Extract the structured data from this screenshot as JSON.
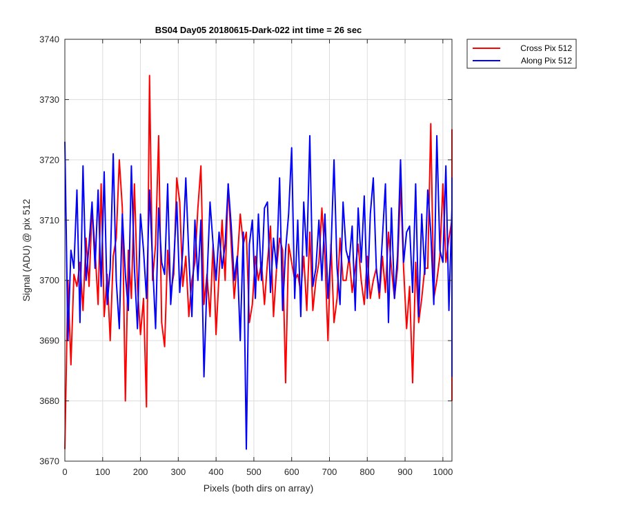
{
  "chart_data": {
    "type": "line",
    "title": "BS04 Day05 20180615-Dark-022 int time = 26 sec",
    "xlabel": "Pixels (both dirs on array)",
    "ylabel": "Signal (ADU) @ pix 512",
    "xlim": [
      0,
      1024
    ],
    "ylim": [
      3670,
      3740
    ],
    "xticks": [
      0,
      100,
      200,
      300,
      400,
      500,
      600,
      700,
      800,
      900,
      1000
    ],
    "yticks": [
      3670,
      3680,
      3690,
      3700,
      3710,
      3720,
      3730,
      3740
    ],
    "grid": true,
    "legend_position": "outside top-right",
    "series": [
      {
        "name": "Cross Pix 512",
        "color": "#ff0000",
        "sample_step": 8,
        "x_start": 0,
        "values": [
          3672,
          3700,
          3686,
          3701,
          3699,
          3703,
          3695,
          3707,
          3699,
          3712,
          3705,
          3696,
          3716,
          3694,
          3701,
          3690,
          3704,
          3707,
          3720,
          3712,
          3680,
          3705,
          3697,
          3716,
          3699,
          3691,
          3697,
          3679,
          3734,
          3700,
          3706,
          3724,
          3693,
          3689,
          3705,
          3698,
          3701,
          3717,
          3713,
          3699,
          3704,
          3694,
          3700,
          3703,
          3712,
          3719,
          3696,
          3701,
          3694,
          3706,
          3691,
          3701,
          3710,
          3700,
          3716,
          3706,
          3697,
          3703,
          3711,
          3706,
          3708,
          3693,
          3696,
          3704,
          3700,
          3703,
          3696,
          3703,
          3709,
          3694,
          3702,
          3707,
          3705,
          3683,
          3706,
          3703,
          3700,
          3701,
          3698,
          3704,
          3695,
          3708,
          3695,
          3700,
          3703,
          3712,
          3704,
          3690,
          3706,
          3693,
          3697,
          3707,
          3700,
          3700,
          3704,
          3698,
          3702,
          3706,
          3700,
          3696,
          3704,
          3697,
          3700,
          3702,
          3697,
          3704,
          3698,
          3708,
          3702,
          3697,
          3702,
          3716,
          3702,
          3692,
          3699,
          3683,
          3703,
          3693,
          3697,
          3702,
          3702,
          3726,
          3697,
          3700,
          3704,
          3716,
          3703,
          3707,
          3710,
          3683,
          3699,
          3686,
          3704,
          3702,
          3725,
          3698,
          3703,
          3702,
          3680
        ]
      },
      {
        "name": "Along Pix 512",
        "color": "#0000ff",
        "sample_step": 8,
        "x_start": 0,
        "values": [
          3723,
          3690,
          3705,
          3702,
          3715,
          3693,
          3719,
          3700,
          3706,
          3713,
          3702,
          3715,
          3699,
          3718,
          3696,
          3702,
          3721,
          3700,
          3692,
          3711,
          3701,
          3695,
          3719,
          3702,
          3692,
          3711,
          3705,
          3697,
          3715,
          3703,
          3692,
          3712,
          3703,
          3701,
          3716,
          3696,
          3703,
          3713,
          3698,
          3705,
          3717,
          3704,
          3694,
          3710,
          3700,
          3710,
          3684,
          3700,
          3713,
          3706,
          3700,
          3708,
          3702,
          3706,
          3716,
          3709,
          3700,
          3704,
          3690,
          3708,
          3672,
          3706,
          3710,
          3697,
          3711,
          3700,
          3712,
          3713,
          3698,
          3707,
          3702,
          3717,
          3695,
          3705,
          3711,
          3722,
          3697,
          3710,
          3694,
          3713,
          3704,
          3724,
          3699,
          3702,
          3710,
          3700,
          3711,
          3697,
          3705,
          3720,
          3702,
          3696,
          3713,
          3705,
          3703,
          3709,
          3695,
          3712,
          3703,
          3714,
          3697,
          3711,
          3717,
          3702,
          3698,
          3707,
          3716,
          3693,
          3712,
          3697,
          3704,
          3720,
          3703,
          3708,
          3709,
          3698,
          3716,
          3694,
          3711,
          3701,
          3715,
          3708,
          3696,
          3724,
          3705,
          3703,
          3719,
          3695,
          3712,
          3702,
          3707,
          3714,
          3697,
          3715,
          3711,
          3703,
          3717,
          3700,
          3684
        ]
      }
    ]
  }
}
